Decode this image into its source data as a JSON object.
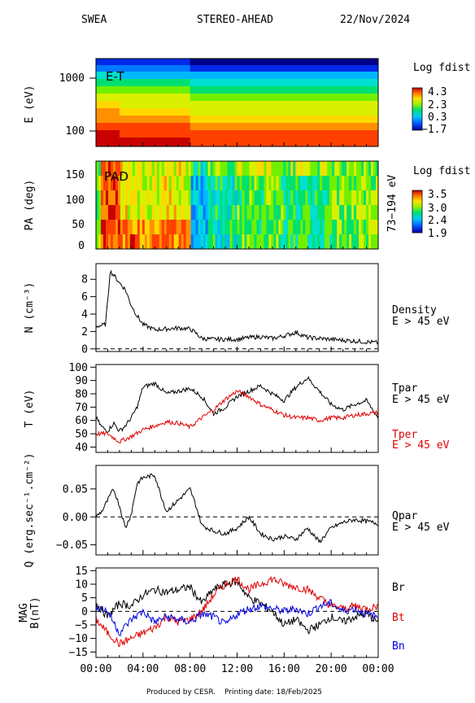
{
  "header": {
    "instrument": "SWEA",
    "spacecraft": "STEREO-AHEAD",
    "date": "22/Nov/2024"
  },
  "footer": {
    "produced": "Produced by CESR.",
    "printing": "Printing date: 18/Feb/2025"
  },
  "colors": {
    "black_series": "#000000",
    "red_series": "#e00000",
    "blue_series": "#0000e0"
  },
  "time_axis": {
    "ticks": [
      "00:00",
      "04:00",
      "08:00",
      "12:00",
      "16:00",
      "20:00",
      "00:00"
    ],
    "hours": [
      0,
      4,
      8,
      12,
      16,
      20,
      24
    ]
  },
  "chart_data": [
    {
      "type": "heatmap",
      "inner_label": "E-T",
      "ylabel": "E (eV)",
      "y_scale": "log",
      "yticks": [
        "1000",
        "100"
      ],
      "colorbar": {
        "title": "Log fdist",
        "ticks": [
          "4.3",
          "2.3",
          "0.3",
          "−1.7"
        ],
        "range": [
          -1.7,
          4.3
        ]
      }
    },
    {
      "type": "heatmap",
      "inner_label": "PAD",
      "ylabel": "PA (deg)",
      "yticks": [
        "150",
        "100",
        "50",
        "0"
      ],
      "ylim": [
        0,
        180
      ],
      "right_label": "73−194 eV",
      "colorbar": {
        "title": "Log fdist",
        "ticks": [
          "3.5",
          "3.0",
          "2.4",
          "1.9"
        ],
        "range": [
          1.9,
          3.5
        ]
      }
    },
    {
      "type": "line",
      "ylabel": "N (cm⁻³)",
      "ylim": [
        -0.3,
        9.8
      ],
      "yticks": [
        "8",
        "6",
        "4",
        "2",
        "0"
      ],
      "ytick_values": [
        8,
        6,
        4,
        2,
        0
      ],
      "zero_line": true,
      "right_labels": [
        "Density",
        "E > 45 eV"
      ],
      "series": [
        {
          "name": "Density",
          "color": "#000000",
          "x": [
            0,
            0.5,
            0.8,
            1.0,
            1.2,
            1.5,
            2.0,
            2.5,
            3.0,
            3.5,
            4.0,
            5.0,
            6.0,
            7.0,
            8.0,
            8.5,
            9.0,
            10.0,
            12.0,
            13.0,
            14.0,
            15.0,
            16.0,
            17.0,
            18.0,
            20.0,
            22.0,
            24.0
          ],
          "values": [
            2.6,
            2.7,
            2.8,
            5.5,
            8.9,
            8.5,
            7.6,
            6.8,
            5.0,
            3.8,
            2.8,
            2.2,
            2.3,
            2.4,
            2.3,
            1.8,
            1.2,
            1.1,
            1.1,
            1.3,
            1.4,
            1.2,
            1.5,
            1.9,
            1.3,
            1.1,
            0.9,
            0.7
          ]
        }
      ]
    },
    {
      "type": "line",
      "ylabel": "T (eV)",
      "ylim": [
        36,
        102
      ],
      "yticks": [
        "100",
        "90",
        "80",
        "70",
        "60",
        "50",
        "40"
      ],
      "ytick_values": [
        100,
        90,
        80,
        70,
        60,
        50,
        40
      ],
      "right_labels": [
        "Tpar",
        "E > 45 eV"
      ],
      "right_labels_red": [
        "Tper",
        "E > 45 eV"
      ],
      "series": [
        {
          "name": "Tpar",
          "color": "#000000",
          "x": [
            0,
            0.5,
            1.0,
            1.5,
            2.0,
            2.5,
            3.0,
            3.5,
            4.0,
            5.0,
            6.0,
            7.0,
            8.0,
            9.0,
            10.0,
            11.0,
            12.0,
            13.0,
            14.0,
            15.0,
            16.0,
            17.0,
            18.0,
            19.0,
            20.0,
            21.0,
            22.0,
            23.0,
            24.0
          ],
          "values": [
            62,
            55,
            52,
            58,
            52,
            56,
            62,
            70,
            85,
            88,
            80,
            82,
            84,
            78,
            65,
            70,
            78,
            82,
            86,
            80,
            75,
            85,
            92,
            82,
            72,
            68,
            72,
            75,
            62
          ]
        },
        {
          "name": "Tper",
          "color": "#e00000",
          "x": [
            0,
            1.0,
            2.0,
            3.0,
            4.0,
            5.0,
            6.0,
            7.0,
            8.0,
            9.0,
            10.0,
            11.0,
            12.0,
            13.0,
            14.0,
            15.0,
            16.0,
            17.0,
            18.0,
            19.0,
            20.0,
            21.0,
            22.0,
            23.0,
            24.0
          ],
          "values": [
            50,
            50,
            44,
            48,
            53,
            56,
            59,
            58,
            55,
            62,
            68,
            76,
            82,
            78,
            72,
            68,
            64,
            62,
            62,
            60,
            62,
            62,
            64,
            65,
            66
          ]
        }
      ]
    },
    {
      "type": "line",
      "ylabel": "Q (erg.sec⁻¹.cm⁻²)",
      "ylim": [
        -0.068,
        0.092
      ],
      "yticks": [
        "0.05",
        "0.00",
        "−0.05"
      ],
      "ytick_values": [
        0.05,
        0.0,
        -0.05
      ],
      "zero_line": true,
      "right_labels": [
        "Qpar",
        "E > 45 eV"
      ],
      "series": [
        {
          "name": "Qpar",
          "color": "#000000",
          "x": [
            0,
            0.5,
            1.0,
            1.5,
            2.0,
            2.5,
            3.0,
            3.5,
            4.0,
            5.0,
            5.5,
            6.0,
            7.0,
            8.0,
            8.5,
            9.0,
            10.0,
            11.0,
            12.0,
            13.0,
            14.0,
            15.0,
            16.0,
            17.0,
            18.0,
            19.0,
            20.0,
            21.0,
            22.0,
            23.0,
            24.0
          ],
          "values": [
            0.0,
            0.01,
            0.03,
            0.05,
            0.02,
            -0.02,
            0.005,
            0.06,
            0.07,
            0.075,
            0.04,
            0.01,
            0.03,
            0.05,
            0.02,
            -0.015,
            -0.025,
            -0.03,
            -0.02,
            0.0,
            -0.03,
            -0.04,
            -0.035,
            -0.04,
            -0.02,
            -0.045,
            -0.02,
            -0.01,
            -0.005,
            -0.008,
            -0.012
          ]
        }
      ]
    },
    {
      "type": "line",
      "ylabel": "MAG\nB(nT)",
      "ylim": [
        -17,
        16
      ],
      "yticks": [
        "15",
        "10",
        "5",
        "0",
        "−5",
        "−10",
        "−15"
      ],
      "ytick_values": [
        15,
        10,
        5,
        0,
        -5,
        -10,
        -15
      ],
      "zero_line": true,
      "series": [
        {
          "name": "Br",
          "color": "#000000",
          "x": [
            0,
            1.0,
            2.0,
            3.0,
            4.0,
            5.0,
            6.0,
            7.0,
            8.0,
            9.0,
            10.0,
            11.0,
            12.0,
            13.0,
            14.0,
            15.0,
            16.0,
            17.0,
            18.0,
            19.0,
            20.0,
            21.0,
            22.0,
            23.0,
            24.0
          ],
          "values": [
            3,
            -2,
            3,
            2,
            6,
            8,
            7,
            8,
            9,
            3,
            8,
            10,
            11,
            5,
            3,
            0,
            -5,
            -3,
            -7,
            -5,
            -2,
            -4,
            -2,
            -1,
            -4
          ]
        },
        {
          "name": "Bt",
          "color": "#e00000",
          "x": [
            0,
            1.0,
            2.0,
            3.0,
            4.0,
            5.0,
            6.0,
            7.0,
            8.0,
            9.0,
            10.0,
            11.0,
            12.0,
            13.0,
            14.0,
            15.0,
            16.0,
            17.0,
            18.0,
            19.0,
            20.0,
            21.0,
            22.0,
            23.0,
            24.0
          ],
          "values": [
            -3,
            -8,
            -12,
            -10,
            -8,
            -6,
            -2,
            -4,
            -3,
            0,
            6,
            10,
            12,
            8,
            10,
            12,
            10,
            9,
            8,
            5,
            2,
            1,
            2,
            1,
            2
          ]
        },
        {
          "name": "Bn",
          "color": "#0000e0",
          "x": [
            0,
            1.0,
            2.0,
            3.0,
            4.0,
            5.0,
            6.0,
            7.0,
            8.0,
            9.0,
            10.0,
            11.0,
            12.0,
            13.0,
            14.0,
            15.0,
            16.0,
            17.0,
            18.0,
            19.0,
            20.0,
            21.0,
            22.0,
            23.0,
            24.0
          ],
          "values": [
            2,
            0,
            -8,
            -3,
            0,
            -4,
            -2,
            -3,
            -4,
            -1,
            -2,
            -5,
            -1,
            1,
            2,
            1,
            0,
            1,
            -1,
            2,
            3,
            0,
            1,
            -1,
            -2
          ]
        }
      ],
      "right_labels_series": [
        "Br",
        "Bt",
        "Bn"
      ]
    }
  ]
}
